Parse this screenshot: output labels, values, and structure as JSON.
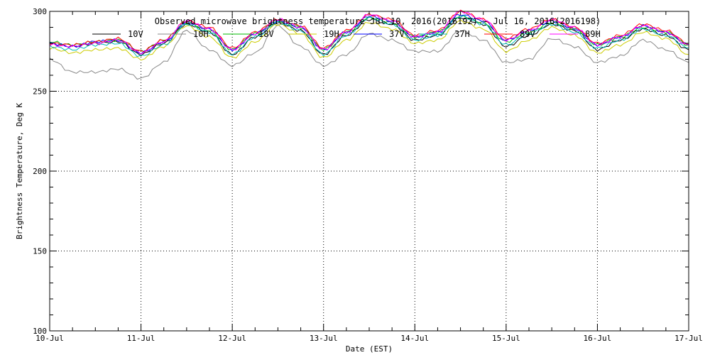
{
  "chart_data": {
    "type": "line",
    "title": "Observed microwave brightness temperature Jul 10, 2016(2016192) - Jul 16, 2016(2016198)",
    "xlabel": "Date (EST)",
    "ylabel": "Brightness Temperature, Deg K",
    "ylim": [
      100,
      300
    ],
    "yticks": [
      100,
      150,
      200,
      250,
      300
    ],
    "x_range_days": [
      0,
      7
    ],
    "categories": [
      "10-Jul",
      "11-Jul",
      "12-Jul",
      "13-Jul",
      "14-Jul",
      "15-Jul",
      "16-Jul",
      "17-Jul"
    ],
    "x": [
      0,
      0.25,
      0.5,
      0.75,
      1.0,
      1.25,
      1.5,
      1.75,
      2.0,
      2.25,
      2.5,
      2.75,
      3.0,
      3.25,
      3.5,
      3.75,
      4.0,
      4.25,
      4.5,
      4.75,
      5.0,
      5.25,
      5.5,
      5.75,
      6.0,
      6.25,
      6.5,
      6.75,
      7.0
    ],
    "grid": true,
    "legend_placement": "top",
    "series": [
      {
        "name": "10V",
        "color": "#000000",
        "values": [
          280,
          278,
          280,
          281,
          273,
          280,
          292,
          287,
          273,
          284,
          293,
          288,
          273,
          285,
          295,
          292,
          282,
          285,
          296,
          292,
          278,
          285,
          292,
          288,
          276,
          282,
          289,
          285,
          276
        ]
      },
      {
        "name": "10H",
        "color": "#888888",
        "values": [
          270,
          262,
          262,
          264,
          258,
          268,
          288,
          276,
          266,
          274,
          291,
          278,
          266,
          273,
          286,
          282,
          275,
          275,
          288,
          282,
          268,
          270,
          283,
          278,
          268,
          272,
          282,
          276,
          268
        ]
      },
      {
        "name": "18V",
        "color": "#00bb00",
        "values": [
          281,
          279,
          281,
          282,
          275,
          282,
          293,
          288,
          276,
          286,
          294,
          290,
          276,
          287,
          296,
          293,
          284,
          287,
          297,
          293,
          281,
          287,
          293,
          289,
          279,
          284,
          290,
          287,
          279
        ]
      },
      {
        "name": "19H",
        "color": "#cccc00",
        "values": [
          277,
          274,
          276,
          277,
          270,
          278,
          291,
          284,
          271,
          281,
          292,
          286,
          271,
          282,
          293,
          289,
          280,
          282,
          294,
          289,
          275,
          282,
          290,
          285,
          274,
          279,
          287,
          283,
          273
        ]
      },
      {
        "name": "37V",
        "color": "#0000ff",
        "values": [
          280,
          278,
          281,
          282,
          274,
          281,
          293,
          289,
          276,
          286,
          294,
          290,
          276,
          287,
          297,
          294,
          284,
          287,
          298,
          294,
          282,
          288,
          294,
          289,
          279,
          284,
          291,
          287,
          279
        ]
      },
      {
        "name": "37H",
        "color": "#00bbbb",
        "values": [
          278,
          276,
          279,
          280,
          272,
          279,
          292,
          287,
          273,
          284,
          293,
          288,
          273,
          285,
          296,
          292,
          282,
          285,
          297,
          292,
          279,
          286,
          292,
          287,
          277,
          282,
          289,
          285,
          277
        ]
      },
      {
        "name": "89V",
        "color": "#ff0000",
        "values": [
          280,
          279,
          281,
          283,
          275,
          282,
          294,
          290,
          277,
          287,
          295,
          291,
          277,
          288,
          298,
          295,
          285,
          288,
          300,
          295,
          283,
          289,
          295,
          290,
          280,
          285,
          292,
          288,
          280
        ]
      },
      {
        "name": "89H",
        "color": "#ff00ff",
        "values": [
          279,
          278,
          280,
          282,
          274,
          281,
          294,
          289,
          276,
          286,
          295,
          290,
          276,
          287,
          298,
          294,
          284,
          287,
          300,
          295,
          282,
          288,
          295,
          290,
          279,
          284,
          291,
          287,
          279
        ]
      }
    ]
  }
}
